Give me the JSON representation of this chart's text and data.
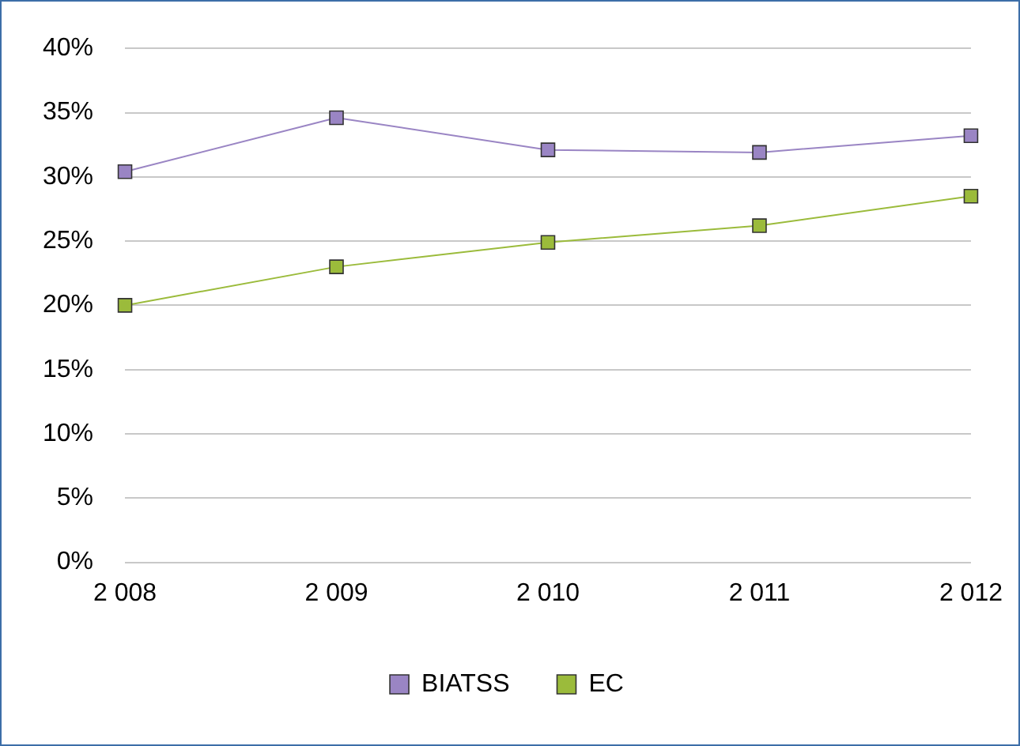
{
  "chart_data": {
    "type": "line",
    "categories": [
      "2 008",
      "2 009",
      "2 010",
      "2 011",
      "2 012"
    ],
    "series": [
      {
        "name": "BIATSS",
        "color": "#9a85c4",
        "values": [
          30.4,
          34.6,
          32.1,
          31.9,
          33.2
        ]
      },
      {
        "name": "EC",
        "color": "#9bbb3b",
        "values": [
          20.0,
          23.0,
          24.9,
          26.2,
          28.5
        ]
      }
    ],
    "ylim": [
      0,
      40
    ],
    "yticks": [
      {
        "value": 0,
        "label": "0%"
      },
      {
        "value": 5,
        "label": "5%"
      },
      {
        "value": 10,
        "label": "10%"
      },
      {
        "value": 15,
        "label": "15%"
      },
      {
        "value": 20,
        "label": "20%"
      },
      {
        "value": 25,
        "label": "25%"
      },
      {
        "value": 30,
        "label": "30%"
      },
      {
        "value": 35,
        "label": "35%"
      },
      {
        "value": 40,
        "label": "40%"
      }
    ],
    "grid": "y",
    "legend": "bottom",
    "marker": "square",
    "line_style": "solid"
  }
}
